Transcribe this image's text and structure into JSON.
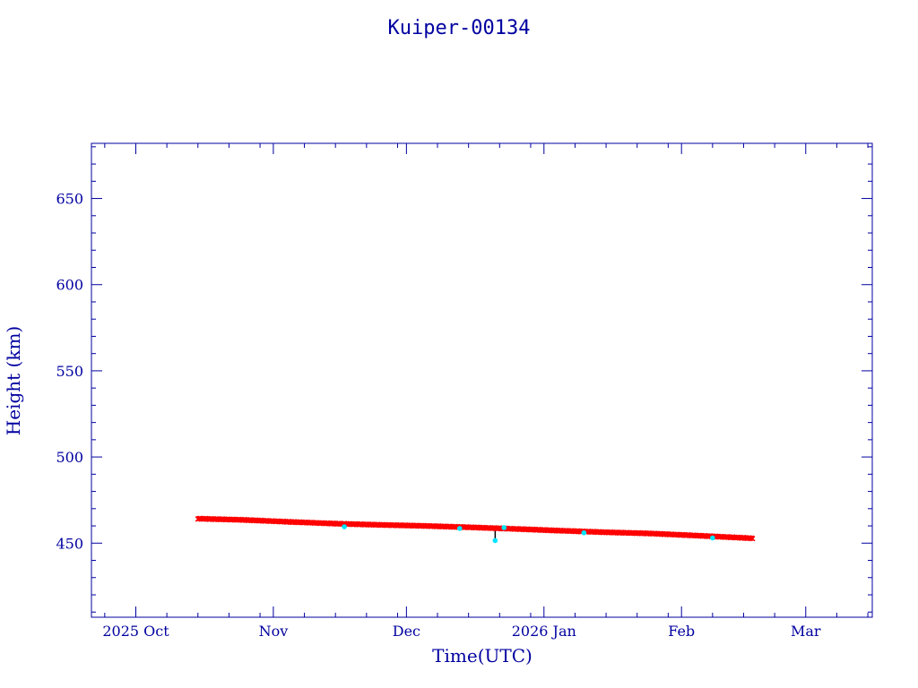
{
  "chart_data": {
    "type": "scatter",
    "title": "Kuiper-00134",
    "xlabel": "Time(UTC)",
    "ylabel": "Height (km)",
    "x_tick_labels": [
      {
        "date": "2025-10-01",
        "label": "2025 Oct"
      },
      {
        "date": "2025-11-01",
        "label": "Nov"
      },
      {
        "date": "2025-12-01",
        "label": "Dec"
      },
      {
        "date": "2026-01-01",
        "label": "2026 Jan"
      },
      {
        "date": "2026-02-01",
        "label": "Feb"
      },
      {
        "date": "2026-03-01",
        "label": "Mar"
      }
    ],
    "y_ticks": [
      450,
      500,
      550,
      600,
      650
    ],
    "xlim": [
      "2025-09-21",
      "2026-03-16"
    ],
    "ylim": [
      407,
      682
    ],
    "grid": false,
    "colors": {
      "frame": "#0000a0",
      "primary_series": "#ff0000",
      "outlier_series": "#00e5ff",
      "spike": "#000000"
    },
    "series": [
      {
        "marker": "x",
        "color": "#ff0000",
        "points": [
          {
            "x": "2025-10-15",
            "y": 464.2
          },
          {
            "x": "2025-10-25",
            "y": 463.5
          },
          {
            "x": "2025-11-05",
            "y": 462.3
          },
          {
            "x": "2025-11-15",
            "y": 461.3
          },
          {
            "x": "2025-11-25",
            "y": 460.6
          },
          {
            "x": "2025-12-05",
            "y": 460.0
          },
          {
            "x": "2025-12-15",
            "y": 459.2
          },
          {
            "x": "2025-12-25",
            "y": 458.3
          },
          {
            "x": "2026-01-05",
            "y": 457.2
          },
          {
            "x": "2026-01-15",
            "y": 456.3
          },
          {
            "x": "2026-01-25",
            "y": 455.6
          },
          {
            "x": "2026-02-05",
            "y": 454.3
          },
          {
            "x": "2026-02-17",
            "y": 452.8
          }
        ]
      },
      {
        "marker": "dot",
        "color": "#00e5ff",
        "points": [
          {
            "x": "2025-11-17",
            "y": 459.5
          },
          {
            "x": "2025-12-13",
            "y": 458.5
          },
          {
            "x": "2025-12-21",
            "y": 451.5
          },
          {
            "x": "2025-12-23",
            "y": 459.0
          },
          {
            "x": "2026-01-10",
            "y": 456.0
          },
          {
            "x": "2026-02-08",
            "y": 453.0
          }
        ]
      }
    ],
    "annotations": [
      {
        "x": "2025-12-21",
        "y_from": 458.0,
        "y_to": 452.0,
        "color": "#000000",
        "kind": "vertical-spike"
      }
    ]
  }
}
